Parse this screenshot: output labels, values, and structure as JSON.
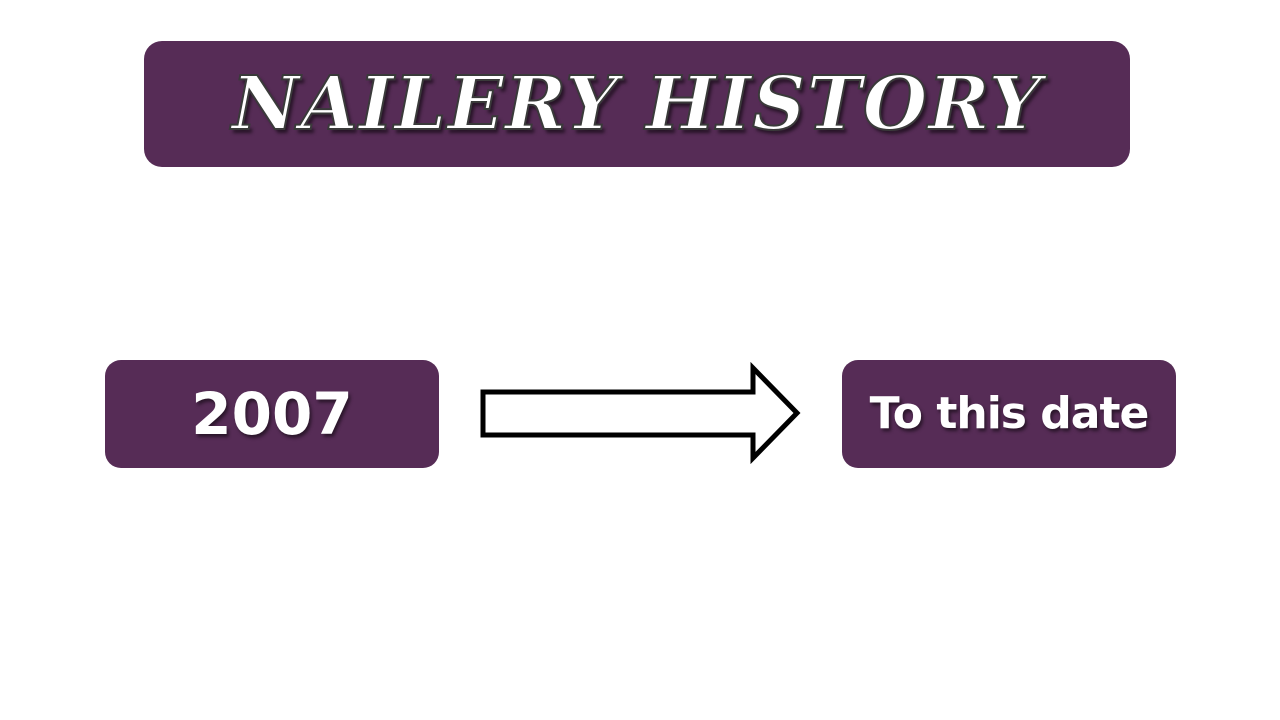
{
  "colors": {
    "box_fill": "#562c56",
    "arrow_fill": "#ffffff",
    "arrow_stroke": "#000000"
  },
  "title": "NAILERY HISTORY",
  "timeline": {
    "start_label": "2007",
    "end_label": "To this date",
    "arrow_icon": "right-arrow-icon"
  }
}
